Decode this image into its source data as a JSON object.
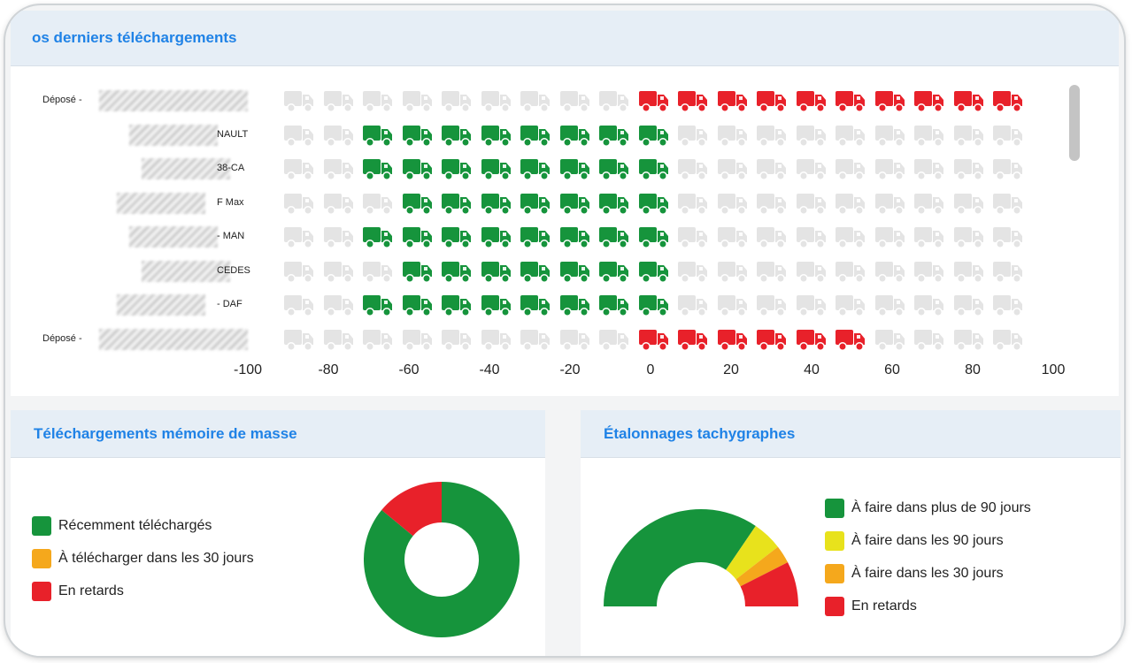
{
  "top_panel": {
    "title": "os derniers téléchargements"
  },
  "rows": [
    {
      "label": "Déposé -",
      "partial": "",
      "start": 0,
      "end": 90,
      "color": "#e8212a"
    },
    {
      "label": "",
      "partial": "NAULT",
      "start": -67,
      "end": 0,
      "color": "#16943c"
    },
    {
      "label": "",
      "partial": "38-CA",
      "start": -67,
      "end": 0,
      "color": "#16943c"
    },
    {
      "label": "",
      "partial": "F Max",
      "start": -62,
      "end": 0,
      "color": "#16943c"
    },
    {
      "label": "",
      "partial": "- MAN",
      "start": -67,
      "end": 0,
      "color": "#16943c"
    },
    {
      "label": "",
      "partial": "CEDES",
      "start": -66,
      "end": 0,
      "color": "#16943c"
    },
    {
      "label": "",
      "partial": "- DAF",
      "start": -67,
      "end": 0,
      "color": "#16943c"
    },
    {
      "label": "Déposé -",
      "partial": "",
      "start": 0,
      "end": 55,
      "color": "#e8212a"
    }
  ],
  "axis": {
    "min": -100,
    "max": 100,
    "ticks": [
      "-100",
      "-80",
      "-60",
      "-40",
      "-20",
      "0",
      "20",
      "40",
      "60",
      "80",
      "100"
    ]
  },
  "mass_memory": {
    "title": "Téléchargements mémoire de masse",
    "legend": [
      {
        "label": "Récemment téléchargés",
        "color": "#16943c"
      },
      {
        "label": "À télécharger dans les 30 jours",
        "color": "#f5a81c"
      },
      {
        "label": "En retards",
        "color": "#e8212a"
      }
    ],
    "chart_data": {
      "type": "pie",
      "labels": [
        "Récemment téléchargés",
        "À télécharger dans les 30 jours",
        "En retards"
      ],
      "values": [
        86,
        0,
        14
      ]
    }
  },
  "calibrations": {
    "title": "Étalonnages tachygraphes",
    "legend": [
      {
        "label": "À faire dans plus de 90 jours",
        "color": "#16943c"
      },
      {
        "label": "À faire dans les 90 jours",
        "color": "#e8e21c"
      },
      {
        "label": "À faire dans les 30 jours",
        "color": "#f5a81c"
      },
      {
        "label": "En retards",
        "color": "#e8212a"
      }
    ],
    "chart_data": {
      "type": "pie",
      "labels": [
        "À faire dans plus de 90 jours",
        "À faire dans les 90 jours",
        "À faire dans les 30 jours",
        "En retards"
      ],
      "values": [
        69,
        10,
        6,
        15
      ]
    }
  }
}
